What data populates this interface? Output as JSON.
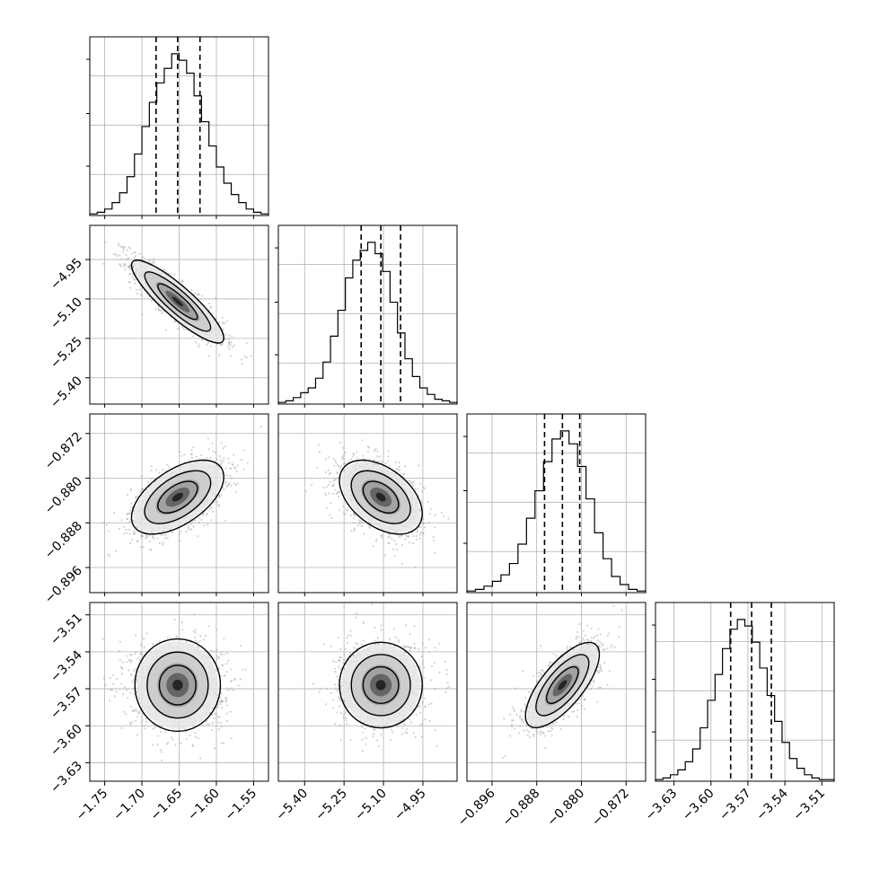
{
  "chart_data": {
    "type": "scatter",
    "kind": "corner plot (posterior samples)",
    "grid": true,
    "parameters": [
      {
        "index": 0,
        "range": [
          -1.77,
          -1.53
        ],
        "ticks": [
          -1.75,
          -1.7,
          -1.65,
          -1.6,
          -1.55
        ],
        "tick_labels": [
          "−1.75",
          "−1.70",
          "−1.65",
          "−1.60",
          "−1.55"
        ],
        "quantiles": [
          -1.681,
          -1.652,
          -1.622
        ],
        "hist": [
          0.01,
          0.02,
          0.04,
          0.08,
          0.14,
          0.24,
          0.38,
          0.55,
          0.7,
          0.82,
          0.91,
          1.0,
          0.96,
          0.88,
          0.74,
          0.58,
          0.43,
          0.3,
          0.2,
          0.13,
          0.08,
          0.04,
          0.02,
          0.01
        ]
      },
      {
        "index": 1,
        "range": [
          -5.5,
          -4.82
        ],
        "ticks": [
          -5.4,
          -5.25,
          -5.1,
          -4.95
        ],
        "tick_labels": [
          "−5.40",
          "−5.25",
          "−5.10",
          "−4.95"
        ],
        "quantiles": [
          -5.185,
          -5.11,
          -5.035
        ],
        "hist": [
          0.01,
          0.02,
          0.04,
          0.07,
          0.1,
          0.16,
          0.26,
          0.42,
          0.58,
          0.78,
          0.89,
          0.95,
          1.0,
          0.93,
          0.82,
          0.63,
          0.44,
          0.28,
          0.17,
          0.1,
          0.06,
          0.03,
          0.02,
          0.01
        ]
      },
      {
        "index": 2,
        "range": [
          -0.9005,
          -0.8685
        ],
        "ticks": [
          -0.896,
          -0.888,
          -0.88,
          -0.872
        ],
        "tick_labels": [
          "−0.896",
          "−0.888",
          "−0.880",
          "−0.872"
        ],
        "quantiles": [
          -0.8866,
          -0.8834,
          -0.8803
        ],
        "hist": [
          0.01,
          0.02,
          0.04,
          0.07,
          0.11,
          0.18,
          0.3,
          0.46,
          0.63,
          0.81,
          0.95,
          1.0,
          0.92,
          0.78,
          0.58,
          0.37,
          0.21,
          0.1,
          0.05,
          0.02,
          0.01
        ]
      },
      {
        "index": 3,
        "range": [
          -3.645,
          -3.5
        ],
        "ticks": [
          -3.63,
          -3.6,
          -3.57,
          -3.54,
          -3.51
        ],
        "tick_labels": [
          "−3.63",
          "−3.60",
          "−3.57",
          "−3.54",
          "−3.51"
        ],
        "quantiles": [
          -3.584,
          -3.567,
          -3.551
        ],
        "hist": [
          0.01,
          0.02,
          0.04,
          0.07,
          0.12,
          0.2,
          0.33,
          0.5,
          0.66,
          0.82,
          0.94,
          1.0,
          0.96,
          0.86,
          0.7,
          0.53,
          0.37,
          0.24,
          0.14,
          0.08,
          0.04,
          0.02,
          0.01,
          0.01
        ]
      }
    ],
    "correlations": [
      {
        "x": 0,
        "y": 1,
        "rho": -0.88
      },
      {
        "x": 0,
        "y": 2,
        "rho": 0.55
      },
      {
        "x": 1,
        "y": 2,
        "rho": -0.45
      },
      {
        "x": 0,
        "y": 3,
        "rho": 0.0
      },
      {
        "x": 1,
        "y": 3,
        "rho": 0.0
      },
      {
        "x": 2,
        "y": 3,
        "rho": 0.72
      }
    ],
    "colors": {
      "line": "#000000",
      "sample_points": "#9e9e9e",
      "grid": "#b0b0b0"
    }
  }
}
